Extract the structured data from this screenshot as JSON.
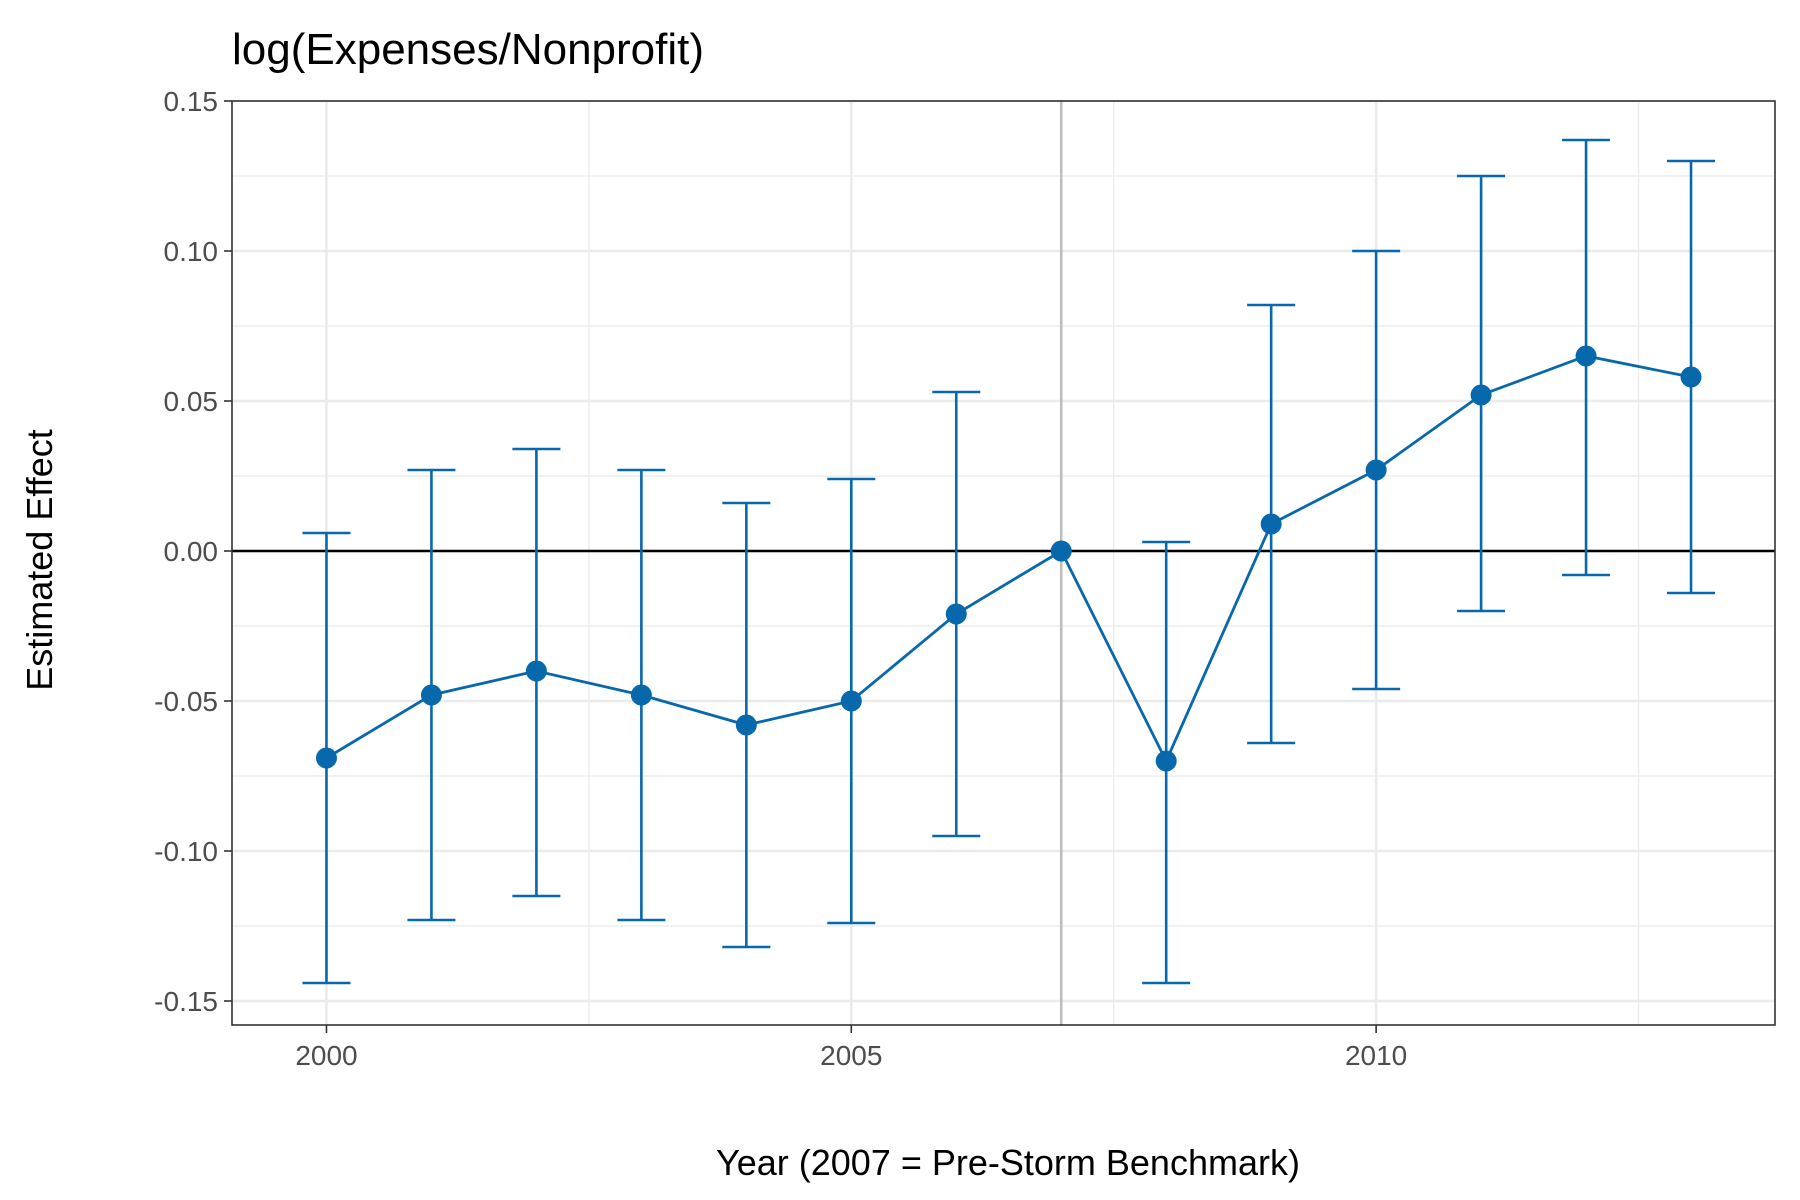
{
  "chart_data": {
    "type": "line",
    "title": "log(Expenses/Nonprofit)",
    "xlabel": "Year (2007 = Pre-Storm Benchmark)",
    "ylabel": "Estimated Effect",
    "xlim": [
      1999.1,
      2013.8
    ],
    "ylim": [
      -0.158,
      0.15
    ],
    "x_ticks": [
      2000,
      2005,
      2010
    ],
    "x_minor_ticks": [
      2002.5,
      2007.5,
      2012.5
    ],
    "y_ticks": [
      -0.15,
      -0.1,
      -0.05,
      0.0,
      0.05,
      0.1,
      0.15
    ],
    "y_tick_labels": [
      "-0.15",
      "-0.10",
      "-0.05",
      "0.00",
      "0.05",
      "0.10",
      "0.15"
    ],
    "y_minor_ticks": [
      -0.125,
      -0.075,
      -0.025,
      0.025,
      0.075,
      0.125
    ],
    "grid": true,
    "reference_hline": 0,
    "benchmark_vline": 2007,
    "series": [
      {
        "color": "#0868ac",
        "x": [
          2000,
          2001,
          2002,
          2003,
          2004,
          2005,
          2006,
          2007,
          2008,
          2009,
          2010,
          2011,
          2012,
          2013
        ],
        "y": [
          -0.069,
          -0.048,
          -0.04,
          -0.048,
          -0.058,
          -0.05,
          -0.021,
          0.0,
          -0.07,
          0.009,
          0.027,
          0.052,
          0.065,
          0.058
        ],
        "lower": [
          -0.144,
          -0.123,
          -0.115,
          -0.123,
          -0.132,
          -0.124,
          -0.095,
          null,
          -0.144,
          -0.064,
          -0.046,
          -0.02,
          -0.008,
          -0.014
        ],
        "upper": [
          0.006,
          0.027,
          0.034,
          0.027,
          0.016,
          0.024,
          0.053,
          null,
          0.003,
          0.082,
          0.1,
          0.125,
          0.137,
          0.13
        ]
      }
    ]
  }
}
